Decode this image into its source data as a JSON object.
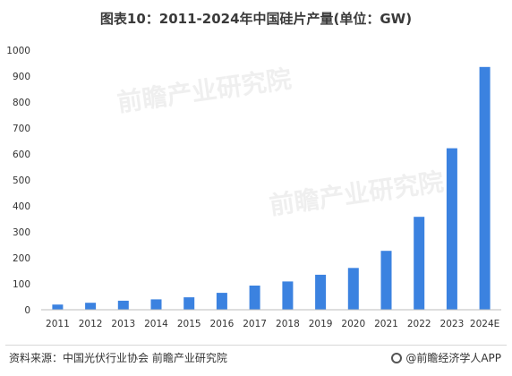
{
  "footer": {
    "source": "资料来源：中国光伏行业协会 前瞻产业研究院",
    "brand": "@前瞻经济学人APP"
  },
  "watermark": "前瞻产业研究院",
  "colors": {
    "bar": "#3b82e0",
    "axis": "#bdbdbd"
  },
  "chart_data": {
    "type": "bar",
    "title": "图表10：2011-2024年中国硅片产量(单位：GW)",
    "categories": [
      "2011",
      "2012",
      "2013",
      "2014",
      "2015",
      "2016",
      "2017",
      "2018",
      "2019",
      "2020",
      "2021",
      "2022",
      "2023",
      "2024E"
    ],
    "values": [
      20,
      27,
      35,
      40,
      48,
      65,
      93,
      109,
      135,
      161,
      227,
      358,
      622,
      935
    ],
    "ylim": [
      0,
      1000
    ],
    "yticks": [
      0,
      100,
      200,
      300,
      400,
      500,
      600,
      700,
      800,
      900,
      1000
    ],
    "grid": false,
    "legend": "none"
  }
}
